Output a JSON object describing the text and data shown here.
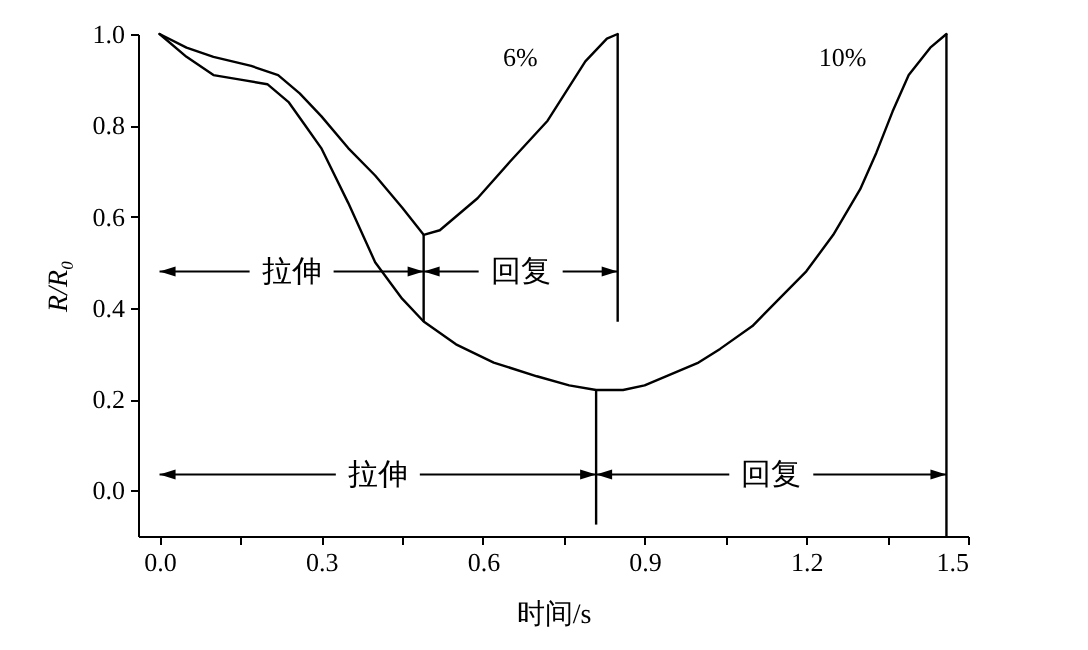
{
  "chart_data": {
    "type": "line",
    "xlabel": "时间/s",
    "ylabel": "R/R₀",
    "xlim": [
      -0.04,
      1.5
    ],
    "ylim": [
      -0.1,
      1.0
    ],
    "xticks": [
      {
        "value": 0,
        "label": "0.0"
      },
      {
        "value": 0.15,
        "label": null
      },
      0.3,
      {
        "value": 0.45,
        "label": null
      },
      0.6,
      {
        "value": 0.75,
        "label": null
      },
      0.9,
      {
        "value": 1.05,
        "label": null
      },
      1.2,
      {
        "value": 1.35,
        "label": null
      },
      1.5
    ],
    "yticks": [
      {
        "value": 0,
        "label": "0.0"
      },
      0.2,
      0.4,
      0.6,
      0.8,
      {
        "value": 1.0,
        "label": "1.0"
      }
    ],
    "grid": false,
    "marker": "none",
    "line_style": "solid",
    "series": [
      {
        "name": "6%",
        "color": "#000000",
        "x": [
          0,
          0.05,
          0.1,
          0.17,
          0.22,
          0.26,
          0.3,
          0.35,
          0.4,
          0.45,
          0.49,
          0.52,
          0.59,
          0.65,
          0.72,
          0.79,
          0.83,
          0.85
        ],
        "values": [
          1.0,
          0.97,
          0.95,
          0.93,
          0.91,
          0.87,
          0.82,
          0.75,
          0.69,
          0.62,
          0.56,
          0.57,
          0.64,
          0.72,
          0.81,
          0.94,
          0.99,
          1.0
        ]
      },
      {
        "name": "10%",
        "color": "#000000",
        "x": [
          0,
          0.05,
          0.1,
          0.15,
          0.2,
          0.24,
          0.27,
          0.3,
          0.35,
          0.4,
          0.45,
          0.49,
          0.55,
          0.62,
          0.7,
          0.76,
          0.81,
          0.86,
          0.9,
          1.0,
          1.04,
          1.1,
          1.15,
          1.2,
          1.25,
          1.3,
          1.33,
          1.36,
          1.39,
          1.43,
          1.46
        ],
        "values": [
          1.0,
          0.95,
          0.91,
          0.9,
          0.89,
          0.85,
          0.8,
          0.75,
          0.63,
          0.5,
          0.42,
          0.37,
          0.32,
          0.28,
          0.25,
          0.23,
          0.22,
          0.22,
          0.23,
          0.28,
          0.31,
          0.36,
          0.42,
          0.48,
          0.56,
          0.66,
          0.74,
          0.83,
          0.91,
          0.97,
          1.0
        ]
      }
    ],
    "ref_lines": [
      {
        "axis": "x",
        "value": 1.46
      }
    ],
    "annotations": [
      "拉伸",
      "回复",
      "拉伸",
      {
        "text": "回复",
        "x": 1.46,
        "y": 0.035
      }
    ]
  }
}
